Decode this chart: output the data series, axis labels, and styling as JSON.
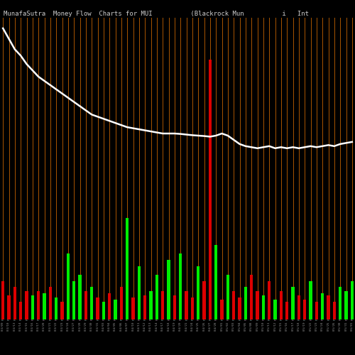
{
  "title": "MunafaSutra  Money Flow  Charts for MUI          (Blackrock Mun          i   Int",
  "background_color": "#000000",
  "positive_color": "#00ee00",
  "negative_color": "#dd0000",
  "line_color": "#ffffff",
  "vline_color": "#aa5500",
  "bar_colors": [
    "neg",
    "neg",
    "neg",
    "neg",
    "neg",
    "pos",
    "neg",
    "pos",
    "neg",
    "pos",
    "neg",
    "pos",
    "pos",
    "pos",
    "neg",
    "pos",
    "neg",
    "pos",
    "neg",
    "pos",
    "neg",
    "pos",
    "neg",
    "pos",
    "neg",
    "pos",
    "pos",
    "neg",
    "pos",
    "neg",
    "pos",
    "neg",
    "neg",
    "pos",
    "neg",
    "neg",
    "pos",
    "neg",
    "pos",
    "neg",
    "neg",
    "pos",
    "neg",
    "neg",
    "pos",
    "neg",
    "pos",
    "neg",
    "neg",
    "pos",
    "neg",
    "neg",
    "pos",
    "neg",
    "pos",
    "neg",
    "neg",
    "pos",
    "pos",
    "pos"
  ],
  "bar_heights": [
    1.5,
    0.8,
    1.2,
    0.5,
    1.0,
    0.8,
    1.0,
    0.9,
    1.2,
    0.7,
    0.5,
    2.8,
    1.5,
    1.8,
    1.0,
    1.2,
    0.7,
    0.5,
    0.9,
    0.6,
    1.2,
    4.5,
    0.7,
    2.2,
    0.8,
    1.0,
    1.8,
    1.0,
    2.5,
    0.8,
    2.8,
    1.0,
    0.7,
    2.2,
    1.5,
    12.0,
    3.2,
    0.6,
    1.8,
    1.0,
    0.7,
    1.2,
    1.8,
    1.0,
    0.8,
    1.5,
    0.6,
    1.0,
    0.5,
    1.2,
    0.8,
    0.6,
    1.5,
    0.5,
    0.9,
    0.8,
    0.5,
    1.2,
    1.0,
    1.5
  ],
  "ma_line": [
    13.5,
    13.0,
    12.5,
    12.2,
    11.8,
    11.5,
    11.2,
    11.0,
    10.8,
    10.6,
    10.4,
    10.2,
    10.0,
    9.8,
    9.6,
    9.4,
    9.3,
    9.2,
    9.1,
    9.0,
    8.9,
    8.8,
    8.75,
    8.7,
    8.65,
    8.6,
    8.55,
    8.5,
    8.5,
    8.5,
    8.48,
    8.45,
    8.42,
    8.4,
    8.38,
    8.35,
    8.4,
    8.5,
    8.4,
    8.2,
    8.0,
    7.9,
    7.85,
    7.8,
    7.85,
    7.9,
    7.8,
    7.85,
    7.8,
    7.85,
    7.8,
    7.85,
    7.9,
    7.85,
    7.9,
    7.95,
    7.9,
    8.0,
    8.05,
    8.1
  ],
  "ylim": [
    0,
    14.0
  ],
  "x_labels": [
    "03/09 p.m.",
    "03/10 p.m.",
    "03/13 p.m.",
    "03/14 p.m.",
    "03/15 p.m.",
    "03/16 p.m.",
    "03/17 p.m.",
    "03/20 p.m.",
    "03/21 p.m.",
    "03/22 p.m.",
    "03/23 p.m.",
    "03/24 p.m.",
    "03/27 p.m.",
    "03/28 p.m.",
    "03/29 p.m.",
    "03/30 p.m.",
    "03/31 p.m.",
    "04/03 p.m.",
    "04/04 p.m.",
    "04/05 p.m.",
    "04/06 p.m.",
    "04/07 p.m.",
    "04/10 p.m.",
    "04/11 p.m.",
    "04/12 p.m.",
    "04/13 p.m.",
    "04/14 p.m.",
    "04/17 p.m.",
    "04/18 p.m.",
    "04/19 p.m.",
    "04/20 p.m.",
    "04/21 p.m.",
    "04/24 p.m.",
    "04/25 p.m.",
    "04/26 p.m.",
    "04/27 p.m.",
    "04/28 p.m.",
    "05/01 p.m.",
    "05/02 p.m.",
    "05/03 p.m.",
    "05/04 p.m.",
    "05/05 p.m.",
    "05/08 p.m.",
    "05/09 p.m.",
    "05/10 p.m.",
    "05/11 p.m.",
    "05/12 p.m.",
    "05/15 p.m.",
    "05/16 p.m.",
    "05/17 p.m.",
    "05/18 p.m.",
    "05/19 p.m.",
    "05/22 p.m.",
    "05/23 p.m.",
    "05/24 p.m.",
    "05/25 p.m.",
    "05/26 p.m.",
    "05/30 p.m.",
    "05/31 p.m.",
    "06/01 p.m."
  ]
}
